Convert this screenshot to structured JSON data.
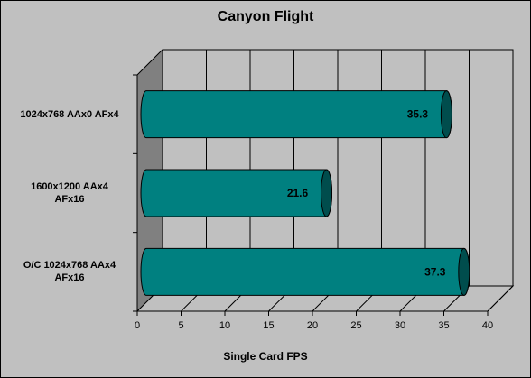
{
  "chart_data": {
    "type": "bar",
    "orientation": "horizontal",
    "style": "3d-cylinder",
    "title": "Canyon Flight",
    "xlabel": "Single Card FPS",
    "ylabel": "",
    "categories": [
      "1024x768  AAx0  AFx4",
      "1600x1200  AAx4\nAFx16",
      "O/C 1024x768  AAx4\nAFx16"
    ],
    "values": [
      35.3,
      21.6,
      37.3
    ],
    "data_labels": [
      "35.3",
      "21.6",
      "37.3"
    ],
    "xlim": [
      0,
      40
    ],
    "xticks": [
      "0",
      "5",
      "10",
      "15",
      "20",
      "25",
      "30",
      "35",
      "40"
    ],
    "grid": true,
    "legend": "none"
  },
  "colors": {
    "background": "#c0c0c0",
    "wall": "#808080",
    "floor": "#c0c0c0",
    "bar_body": "#008080",
    "bar_cap": "#004d4d",
    "bar_outline": "#000000"
  }
}
